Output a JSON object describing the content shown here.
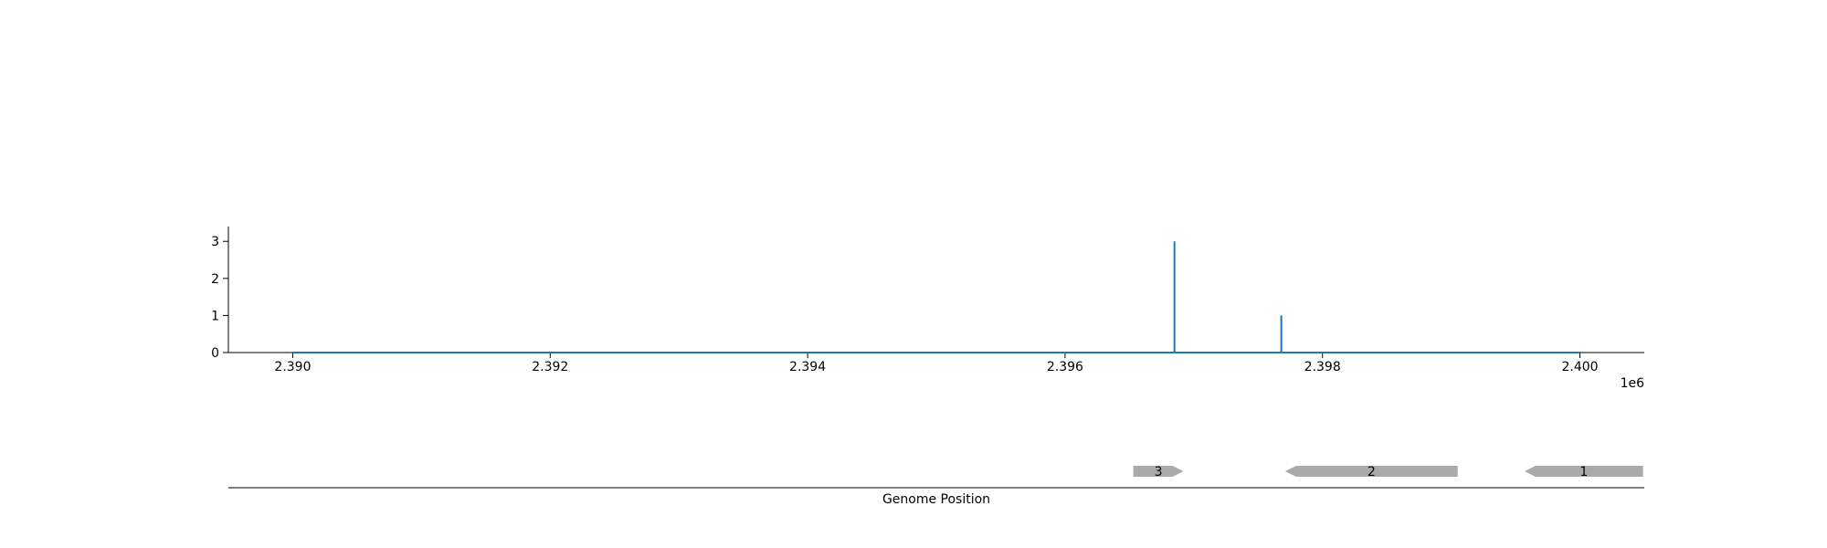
{
  "colors": {
    "line": "#1f77b4",
    "gene": "#a9a9a9",
    "axis": "#000000"
  },
  "chart_data": [
    {
      "type": "line",
      "title": "",
      "xlabel": "",
      "ylabel": "",
      "x_offset_label": "1e6",
      "xlim": [
        2389500,
        2400500
      ],
      "ylim": [
        0,
        3.4
      ],
      "x_ticks": [
        2390000,
        2392000,
        2394000,
        2396000,
        2398000,
        2400000
      ],
      "x_tick_labels": [
        "2.390",
        "2.392",
        "2.394",
        "2.396",
        "2.398",
        "2.400"
      ],
      "y_ticks": [
        0,
        1,
        2,
        3
      ],
      "y_tick_labels": [
        "0",
        "1",
        "2",
        "3"
      ],
      "grid": false,
      "series": [
        {
          "points": [
            [
              2390000,
              0
            ],
            [
              2396850,
              0
            ],
            [
              2396850,
              3
            ],
            [
              2396850,
              0
            ],
            [
              2397680,
              0
            ],
            [
              2397680,
              1
            ],
            [
              2397680,
              0
            ],
            [
              2400000,
              0
            ]
          ]
        }
      ]
    },
    {
      "type": "gene_track",
      "xlabel": "Genome Position",
      "xlim": [
        2389500,
        2400500
      ],
      "genes": [
        {
          "label": "3",
          "start": 2396530,
          "end": 2396920,
          "strand": "+"
        },
        {
          "label": "2",
          "start": 2397710,
          "end": 2399050,
          "strand": "-"
        },
        {
          "label": "1",
          "start": 2399570,
          "end": 2400490,
          "strand": "-"
        }
      ]
    }
  ]
}
